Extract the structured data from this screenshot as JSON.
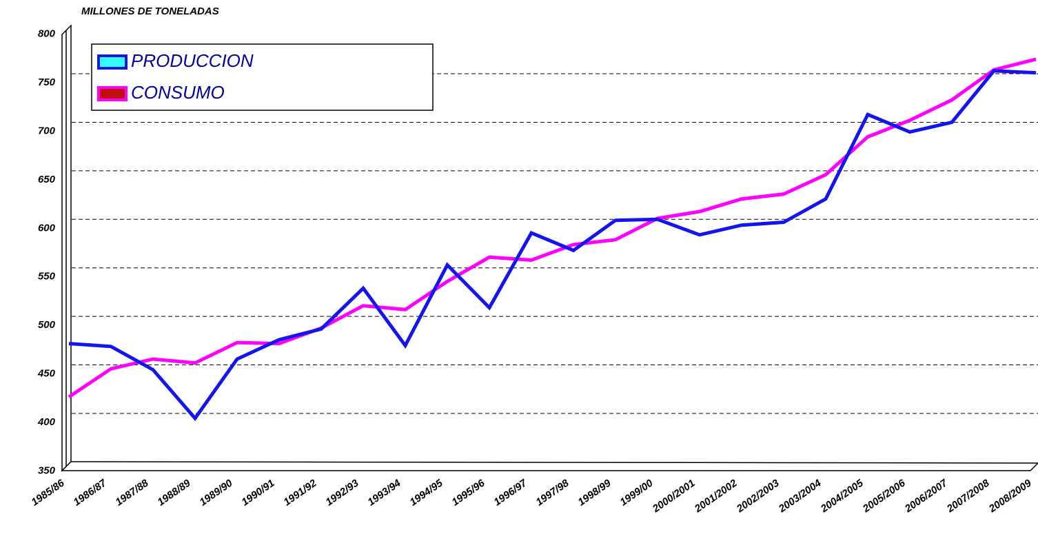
{
  "chart_data": {
    "type": "line",
    "title": "MILLONES DE TONELADAS",
    "categories": [
      "1985/86",
      "1986/87",
      "1987/88",
      "1988/89",
      "1989/90",
      "1990/91",
      "1991/92",
      "1992/93",
      "1993/94",
      "1994/95",
      "1995/96",
      "1996/97",
      "1997/98",
      "1998/99",
      "1999/00",
      "2000/2001",
      "2001/2002",
      "2002/2003",
      "2003/2004",
      "2004/2005",
      "2005/2006",
      "2006/2007",
      "2007/2008",
      "2008/2009"
    ],
    "series": [
      {
        "name": "PRODUCCION",
        "color": "#1414f0",
        "legend_fill": "#33ffff",
        "values": [
          472,
          469,
          445,
          395,
          456,
          476,
          487,
          529,
          470,
          553,
          509,
          586,
          568,
          599,
          600,
          584,
          594,
          597,
          621,
          708,
          690,
          700,
          753,
          751
        ]
      },
      {
        "name": "CONSUMO",
        "color": "#ff00ff",
        "legend_fill": "#c01010",
        "values": [
          417,
          446,
          456,
          452,
          473,
          472,
          488,
          511,
          507,
          536,
          561,
          558,
          574,
          579,
          601,
          608,
          621,
          626,
          646,
          685,
          702,
          723,
          754,
          765
        ]
      }
    ],
    "ylim": [
      350,
      800
    ],
    "yticks": [
      350,
      400,
      450,
      500,
      550,
      600,
      650,
      700,
      750,
      800
    ],
    "grid": true,
    "legend": "upper left"
  }
}
